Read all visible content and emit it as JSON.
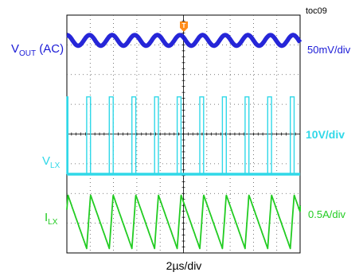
{
  "figure_id": "toc09",
  "trigger_marker": "T",
  "chart_data": {
    "type": "line",
    "grid": true,
    "grid_divisions": {
      "x": 10,
      "y": 8
    },
    "time_label": "2µs/div",
    "time_div_us": 2,
    "colors": {
      "vout": "#1a1ad6",
      "vlx": "#30d8e8",
      "ilx": "#22cc22",
      "grid": "#000000"
    },
    "series": [
      {
        "key": "vout",
        "name": "V_OUT (AC)",
        "label_main": "V",
        "label_sub": "OUT",
        "label_tail": " (AC)",
        "scale": "50mV/div",
        "color": "#1a1ad6",
        "waveform": "ripple",
        "baseline_div": 7.15,
        "amplitude_div": 0.18,
        "period_div": 0.97,
        "cycles": 10.3
      },
      {
        "key": "vlx",
        "name": "V_LX",
        "label_main": "V",
        "label_sub": "LX",
        "scale": "10V/div",
        "color": "#30d8e8",
        "waveform": "switch",
        "low_div": 2.65,
        "high_div": 5.25,
        "period_div": 0.97,
        "duty": 0.17,
        "cycles": 10.3
      },
      {
        "key": "ilx",
        "name": "I_LX",
        "label_main": "I",
        "label_sub": "LX",
        "scale": "0.5A/div",
        "color": "#22cc22",
        "waveform": "triangle",
        "min_div": 0.15,
        "max_div": 1.95,
        "period_div": 0.97,
        "rise_fraction": 0.17,
        "cycles": 10.3
      }
    ]
  }
}
